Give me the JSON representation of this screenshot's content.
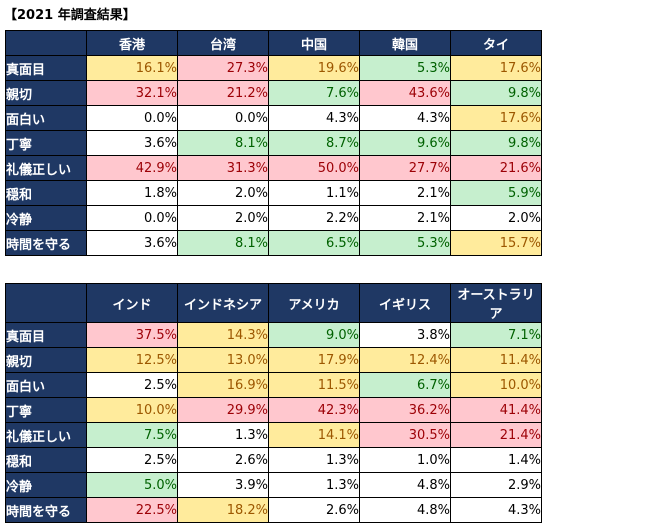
{
  "title": "【2021 年調査結果】",
  "colors": {
    "header_bg": "#1f3864",
    "yellow": "#ffeb9c",
    "red": "#ffc7ce",
    "green": "#c6efce",
    "white": "#ffffff"
  },
  "table1": {
    "columns": [
      "香港",
      "台湾",
      "中国",
      "韓国",
      "タイ"
    ],
    "rows": [
      {
        "label": "真面目",
        "values": [
          "16.1%",
          "27.3%",
          "19.6%",
          "5.3%",
          "17.6%"
        ],
        "colors": [
          "y",
          "r",
          "y",
          "g",
          "y"
        ]
      },
      {
        "label": "親切",
        "values": [
          "32.1%",
          "21.2%",
          "7.6%",
          "43.6%",
          "9.8%"
        ],
        "colors": [
          "r",
          "r",
          "g",
          "r",
          "g"
        ]
      },
      {
        "label": "面白い",
        "values": [
          "0.0%",
          "0.0%",
          "4.3%",
          "4.3%",
          "17.6%"
        ],
        "colors": [
          "w",
          "w",
          "w",
          "w",
          "y"
        ]
      },
      {
        "label": "丁寧",
        "values": [
          "3.6%",
          "8.1%",
          "8.7%",
          "9.6%",
          "9.8%"
        ],
        "colors": [
          "w",
          "g",
          "g",
          "g",
          "g"
        ]
      },
      {
        "label": "礼儀正しい",
        "values": [
          "42.9%",
          "31.3%",
          "50.0%",
          "27.7%",
          "21.6%"
        ],
        "colors": [
          "r",
          "r",
          "r",
          "r",
          "r"
        ]
      },
      {
        "label": "穏和",
        "values": [
          "1.8%",
          "2.0%",
          "1.1%",
          "2.1%",
          "5.9%"
        ],
        "colors": [
          "w",
          "w",
          "w",
          "w",
          "g"
        ]
      },
      {
        "label": "冷静",
        "values": [
          "0.0%",
          "2.0%",
          "2.2%",
          "2.1%",
          "2.0%"
        ],
        "colors": [
          "w",
          "w",
          "w",
          "w",
          "w"
        ]
      },
      {
        "label": "時間を守る",
        "values": [
          "3.6%",
          "8.1%",
          "6.5%",
          "5.3%",
          "15.7%"
        ],
        "colors": [
          "w",
          "g",
          "g",
          "g",
          "y"
        ]
      }
    ]
  },
  "table2": {
    "columns": [
      "インド",
      "インドネシア",
      "アメリカ",
      "イギリス",
      "オーストラリア"
    ],
    "rows": [
      {
        "label": "真面目",
        "values": [
          "37.5%",
          "14.3%",
          "9.0%",
          "3.8%",
          "7.1%"
        ],
        "colors": [
          "r",
          "y",
          "g",
          "w",
          "g"
        ]
      },
      {
        "label": "親切",
        "values": [
          "12.5%",
          "13.0%",
          "17.9%",
          "12.4%",
          "11.4%"
        ],
        "colors": [
          "y",
          "y",
          "y",
          "y",
          "y"
        ]
      },
      {
        "label": "面白い",
        "values": [
          "2.5%",
          "16.9%",
          "11.5%",
          "6.7%",
          "10.0%"
        ],
        "colors": [
          "w",
          "y",
          "y",
          "g",
          "y"
        ]
      },
      {
        "label": "丁寧",
        "values": [
          "10.0%",
          "29.9%",
          "42.3%",
          "36.2%",
          "41.4%"
        ],
        "colors": [
          "y",
          "r",
          "r",
          "r",
          "r"
        ]
      },
      {
        "label": "礼儀正しい",
        "values": [
          "7.5%",
          "1.3%",
          "14.1%",
          "30.5%",
          "21.4%"
        ],
        "colors": [
          "g",
          "w",
          "y",
          "r",
          "r"
        ]
      },
      {
        "label": "穏和",
        "values": [
          "2.5%",
          "2.6%",
          "1.3%",
          "1.0%",
          "1.4%"
        ],
        "colors": [
          "w",
          "w",
          "w",
          "w",
          "w"
        ]
      },
      {
        "label": "冷静",
        "values": [
          "5.0%",
          "3.9%",
          "1.3%",
          "4.8%",
          "2.9%"
        ],
        "colors": [
          "g",
          "w",
          "w",
          "w",
          "w"
        ]
      },
      {
        "label": "時間を守る",
        "values": [
          "22.5%",
          "18.2%",
          "2.6%",
          "4.8%",
          "4.3%"
        ],
        "colors": [
          "r",
          "y",
          "w",
          "w",
          "w"
        ]
      }
    ]
  }
}
